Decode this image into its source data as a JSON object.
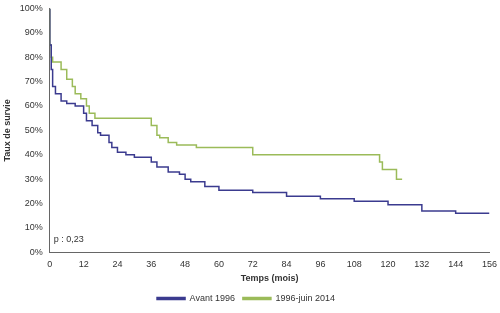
{
  "chart_data": {
    "type": "line",
    "x_label": "Temps (mois)",
    "y_label": "Taux de survie",
    "annotation": "p : 0,23",
    "xlim": [
      0,
      156
    ],
    "xticks": [
      0,
      12,
      24,
      36,
      48,
      60,
      72,
      84,
      96,
      108,
      120,
      132,
      144,
      156
    ],
    "ylim": [
      0,
      100
    ],
    "yticks": [
      {
        "value": 0,
        "label": "0%"
      },
      {
        "value": 10,
        "label": "10%"
      },
      {
        "value": 20,
        "label": "20%"
      },
      {
        "value": 30,
        "label": "30%"
      },
      {
        "value": 40,
        "label": "40%"
      },
      {
        "value": 50,
        "label": "50%"
      },
      {
        "value": 60,
        "label": "60%"
      },
      {
        "value": 70,
        "label": "70%"
      },
      {
        "value": 80,
        "label": "80%"
      },
      {
        "value": 90,
        "label": "90%"
      },
      {
        "value": 100,
        "label": "100%"
      }
    ],
    "grid": false,
    "legend": "bottom",
    "series": [
      {
        "name": "Avant 1996",
        "color": "#3b3b8f",
        "x": [
          0,
          0.5,
          1,
          2,
          4,
          6,
          9,
          12,
          13,
          15,
          17,
          18,
          21,
          22,
          24,
          27,
          30,
          36,
          38,
          42,
          46,
          48,
          50,
          55,
          57,
          60,
          72,
          84,
          96,
          108,
          120,
          132,
          144,
          156
        ],
        "values": [
          100,
          85,
          75,
          68,
          65,
          62,
          61,
          60,
          57,
          54,
          52,
          49,
          48,
          45,
          43,
          41,
          40,
          39,
          37,
          35,
          33,
          32,
          30,
          29,
          27,
          27,
          25.5,
          24.5,
          23,
          22,
          21,
          19.5,
          17,
          16
        ]
      },
      {
        "name": "1996-juin 2014",
        "color": "#9bbb59",
        "x": [
          0,
          0.5,
          1,
          4,
          6,
          8,
          9,
          11,
          13,
          14,
          16,
          17,
          36,
          38,
          39,
          42,
          45,
          52,
          58,
          72,
          75,
          117,
          118,
          123,
          125
        ],
        "values": [
          100,
          85,
          80,
          78,
          75,
          71,
          68,
          65,
          63,
          60,
          57,
          55,
          55,
          52,
          48,
          47,
          45,
          44,
          43,
          43,
          40,
          40,
          37,
          34,
          30
        ]
      }
    ]
  }
}
